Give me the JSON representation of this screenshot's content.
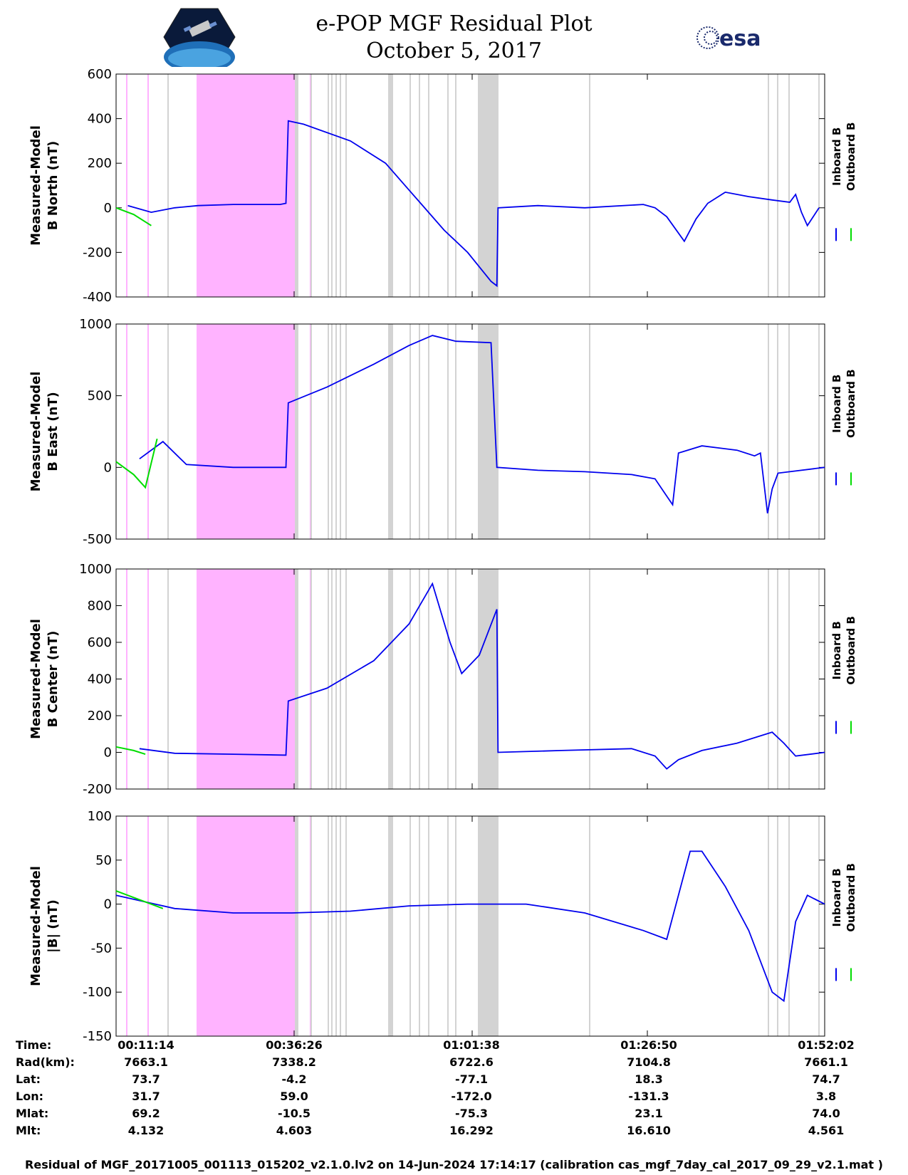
{
  "title": "e-POP MGF Residual Plot",
  "subtitle": "October 5, 2017",
  "logos": {
    "left": "cassiope-mission-logo",
    "right_text": "esa"
  },
  "legend": {
    "inboard": "Inboard B",
    "outboard": "Outboard B"
  },
  "colors": {
    "inboard": "#0000ee",
    "outboard": "#00dd00",
    "highlight_pink": "#ffb3ff",
    "gap_gray": "#d3d3d3",
    "pink_line": "#ff99ff"
  },
  "chart_data": [
    {
      "type": "line",
      "ylabel_line1": "Measured-Model",
      "ylabel_line2": "B North (nT)",
      "ylim": [
        -400,
        600
      ],
      "yticks": [
        600,
        400,
        200,
        0,
        -200,
        -400
      ],
      "xlim_sec": [
        0,
        6048
      ],
      "series": [
        {
          "name": "Inboard B",
          "points": [
            [
              100,
              10
            ],
            [
              300,
              -20
            ],
            [
              500,
              0
            ],
            [
              700,
              10
            ],
            [
              1000,
              15
            ],
            [
              1400,
              15
            ],
            [
              1450,
              20
            ],
            [
              1470,
              390
            ],
            [
              1600,
              375
            ],
            [
              2000,
              300
            ],
            [
              2300,
              200
            ],
            [
              2500,
              80
            ],
            [
              2600,
              20
            ],
            [
              2800,
              -100
            ],
            [
              3000,
              -200
            ],
            [
              3200,
              -330
            ],
            [
              3250,
              -350
            ],
            [
              3260,
              0
            ],
            [
              3600,
              10
            ],
            [
              4000,
              0
            ],
            [
              4500,
              15
            ],
            [
              4600,
              0
            ],
            [
              4700,
              -40
            ],
            [
              4850,
              -150
            ],
            [
              4950,
              -50
            ],
            [
              5050,
              20
            ],
            [
              5200,
              70
            ],
            [
              5400,
              50
            ],
            [
              5600,
              35
            ],
            [
              5750,
              25
            ],
            [
              5800,
              60
            ],
            [
              5850,
              -20
            ],
            [
              5900,
              -80
            ],
            [
              6000,
              0
            ]
          ]
        },
        {
          "name": "Outboard B",
          "points": [
            [
              0,
              0
            ],
            [
              150,
              -30
            ],
            [
              300,
              -80
            ]
          ]
        }
      ]
    },
    {
      "type": "line",
      "ylabel_line1": "Measured-Model",
      "ylabel_line2": "B East (nT)",
      "ylim": [
        -500,
        1000
      ],
      "yticks": [
        1000,
        500,
        0,
        -500
      ],
      "series": [
        {
          "name": "Inboard B",
          "points": [
            [
              200,
              60
            ],
            [
              400,
              180
            ],
            [
              600,
              20
            ],
            [
              1000,
              0
            ],
            [
              1450,
              0
            ],
            [
              1470,
              450
            ],
            [
              1800,
              560
            ],
            [
              2200,
              720
            ],
            [
              2500,
              850
            ],
            [
              2700,
              920
            ],
            [
              2900,
              880
            ],
            [
              3200,
              870
            ],
            [
              3250,
              0
            ],
            [
              3600,
              -20
            ],
            [
              4000,
              -30
            ],
            [
              4400,
              -50
            ],
            [
              4600,
              -80
            ],
            [
              4700,
              -200
            ],
            [
              4750,
              -260
            ],
            [
              4800,
              100
            ],
            [
              5000,
              150
            ],
            [
              5300,
              120
            ],
            [
              5450,
              80
            ],
            [
              5500,
              100
            ],
            [
              5560,
              -320
            ],
            [
              5600,
              -150
            ],
            [
              5650,
              -40
            ],
            [
              6048,
              0
            ]
          ]
        },
        {
          "name": "Outboard B",
          "points": [
            [
              0,
              40
            ],
            [
              150,
              -50
            ],
            [
              250,
              -140
            ],
            [
              350,
              200
            ]
          ]
        }
      ]
    },
    {
      "type": "line",
      "ylabel_line1": "Measured-Model",
      "ylabel_line2": "B Center (nT)",
      "ylim": [
        -200,
        1000
      ],
      "yticks": [
        1000,
        800,
        600,
        400,
        200,
        0,
        -200
      ],
      "series": [
        {
          "name": "Inboard B",
          "points": [
            [
              200,
              20
            ],
            [
              500,
              -5
            ],
            [
              1000,
              -10
            ],
            [
              1450,
              -15
            ],
            [
              1470,
              280
            ],
            [
              1800,
              350
            ],
            [
              2200,
              500
            ],
            [
              2500,
              700
            ],
            [
              2700,
              920
            ],
            [
              2850,
              600
            ],
            [
              2950,
              430
            ],
            [
              3100,
              530
            ],
            [
              3250,
              780
            ],
            [
              3260,
              0
            ],
            [
              3800,
              10
            ],
            [
              4400,
              20
            ],
            [
              4600,
              -20
            ],
            [
              4700,
              -90
            ],
            [
              4800,
              -40
            ],
            [
              5000,
              10
            ],
            [
              5300,
              50
            ],
            [
              5600,
              110
            ],
            [
              5700,
              50
            ],
            [
              5800,
              -20
            ],
            [
              6048,
              0
            ]
          ]
        },
        {
          "name": "Outboard B",
          "points": [
            [
              0,
              30
            ],
            [
              150,
              10
            ],
            [
              250,
              -10
            ]
          ]
        }
      ]
    },
    {
      "type": "line",
      "ylabel_line1": "Measured-Model",
      "ylabel_line2": "|B| (nT)",
      "ylim": [
        -150,
        100
      ],
      "yticks": [
        100,
        50,
        0,
        -50,
        -100,
        -150
      ],
      "series": [
        {
          "name": "Inboard B",
          "points": [
            [
              0,
              10
            ],
            [
              500,
              -5
            ],
            [
              1000,
              -10
            ],
            [
              1500,
              -10
            ],
            [
              2000,
              -8
            ],
            [
              2500,
              -2
            ],
            [
              3000,
              0
            ],
            [
              3500,
              0
            ],
            [
              4000,
              -10
            ],
            [
              4500,
              -30
            ],
            [
              4700,
              -40
            ],
            [
              4900,
              60
            ],
            [
              5000,
              60
            ],
            [
              5200,
              20
            ],
            [
              5400,
              -30
            ],
            [
              5600,
              -100
            ],
            [
              5700,
              -110
            ],
            [
              5800,
              -20
            ],
            [
              5900,
              10
            ],
            [
              6048,
              0
            ]
          ]
        },
        {
          "name": "Outboard B",
          "points": [
            [
              0,
              15
            ],
            [
              200,
              5
            ],
            [
              400,
              -5
            ]
          ]
        }
      ]
    }
  ],
  "ephemeris": {
    "labels": [
      "Time:",
      "Rad(km):",
      "Lat:",
      "Lon:",
      "Mlat:",
      "Mlt:"
    ],
    "columns": [
      [
        "00:11:14",
        "7663.1",
        "73.7",
        "31.7",
        "69.2",
        "4.132"
      ],
      [
        "00:36:26",
        "7338.2",
        "-4.2",
        "59.0",
        "-10.5",
        "4.603"
      ],
      [
        "01:01:38",
        "6722.6",
        "-77.1",
        "-172.0",
        "-75.3",
        "16.292"
      ],
      [
        "01:26:50",
        "7104.8",
        "18.3",
        "-131.3",
        "23.1",
        "16.610"
      ],
      [
        "01:52:02",
        "7661.1",
        "74.7",
        "3.8",
        "74.0",
        "4.561"
      ]
    ]
  },
  "footer": "Residual of MGF_20171005_001113_015202_v2.1.0.lv2 on 14-Jun-2024 17:14:17 (calibration cas_mgf_7day_cal_2017_09_29_v2.1.mat )"
}
